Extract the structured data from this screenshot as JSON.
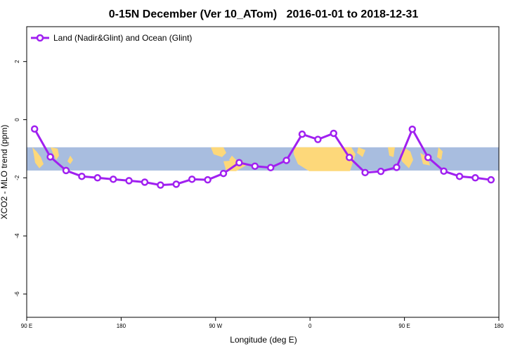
{
  "chart_data": {
    "type": "line",
    "title": "0-15N December (Ver 10_ATom)   2016-01-01 to 2018-12-31",
    "xlabel": "Longitude (deg E)",
    "ylabel": "XCO2 - MLO trend (ppm)",
    "x_ticks": [
      {
        "value": 90,
        "label": "90 E"
      },
      {
        "value": 180,
        "label": "180"
      },
      {
        "value": 270,
        "label": "90 W"
      },
      {
        "value": 360,
        "label": "0"
      },
      {
        "value": 450,
        "label": "90 E"
      },
      {
        "value": 540,
        "label": "180"
      }
    ],
    "y_ticks": [
      {
        "value": 2,
        "label": "2"
      },
      {
        "value": 0,
        "label": "0"
      },
      {
        "value": -2,
        "label": "-2"
      },
      {
        "value": -4,
        "label": "-4"
      },
      {
        "value": -6,
        "label": "-6"
      }
    ],
    "xlim": [
      90,
      540
    ],
    "ylim": [
      -6.8,
      3.2
    ],
    "legend_position": "top-left",
    "series_color": "#a020f0",
    "map_band": {
      "ymin": -1.75,
      "ymax": -0.95,
      "ocean_color": "#a8bddf",
      "land_color": "#fdd87a"
    },
    "series": [
      {
        "name": "Land (Nadir&Glint) and Ocean (Glint)",
        "x": [
          97.5,
          112.5,
          127.5,
          142.5,
          157.5,
          172.5,
          187.5,
          202.5,
          217.5,
          232.5,
          247.5,
          262.5,
          277.5,
          292.5,
          307.5,
          322.5,
          337.5,
          352.5,
          367.5,
          382.5,
          397.5,
          412.5,
          427.5,
          442.5,
          457.5,
          472.5,
          487.5,
          502.5,
          517.5,
          532.5
        ],
        "values": [
          -0.32,
          -1.28,
          -1.75,
          -1.95,
          -2.0,
          -2.05,
          -2.1,
          -2.15,
          -2.25,
          -2.22,
          -2.05,
          -2.07,
          -1.85,
          -1.48,
          -1.6,
          -1.65,
          -1.4,
          -0.5,
          -0.68,
          -0.47,
          -1.3,
          -1.82,
          -1.78,
          -1.64,
          -0.33,
          -1.3,
          -1.77,
          -1.95,
          -2.0,
          -2.07
        ]
      }
    ]
  }
}
